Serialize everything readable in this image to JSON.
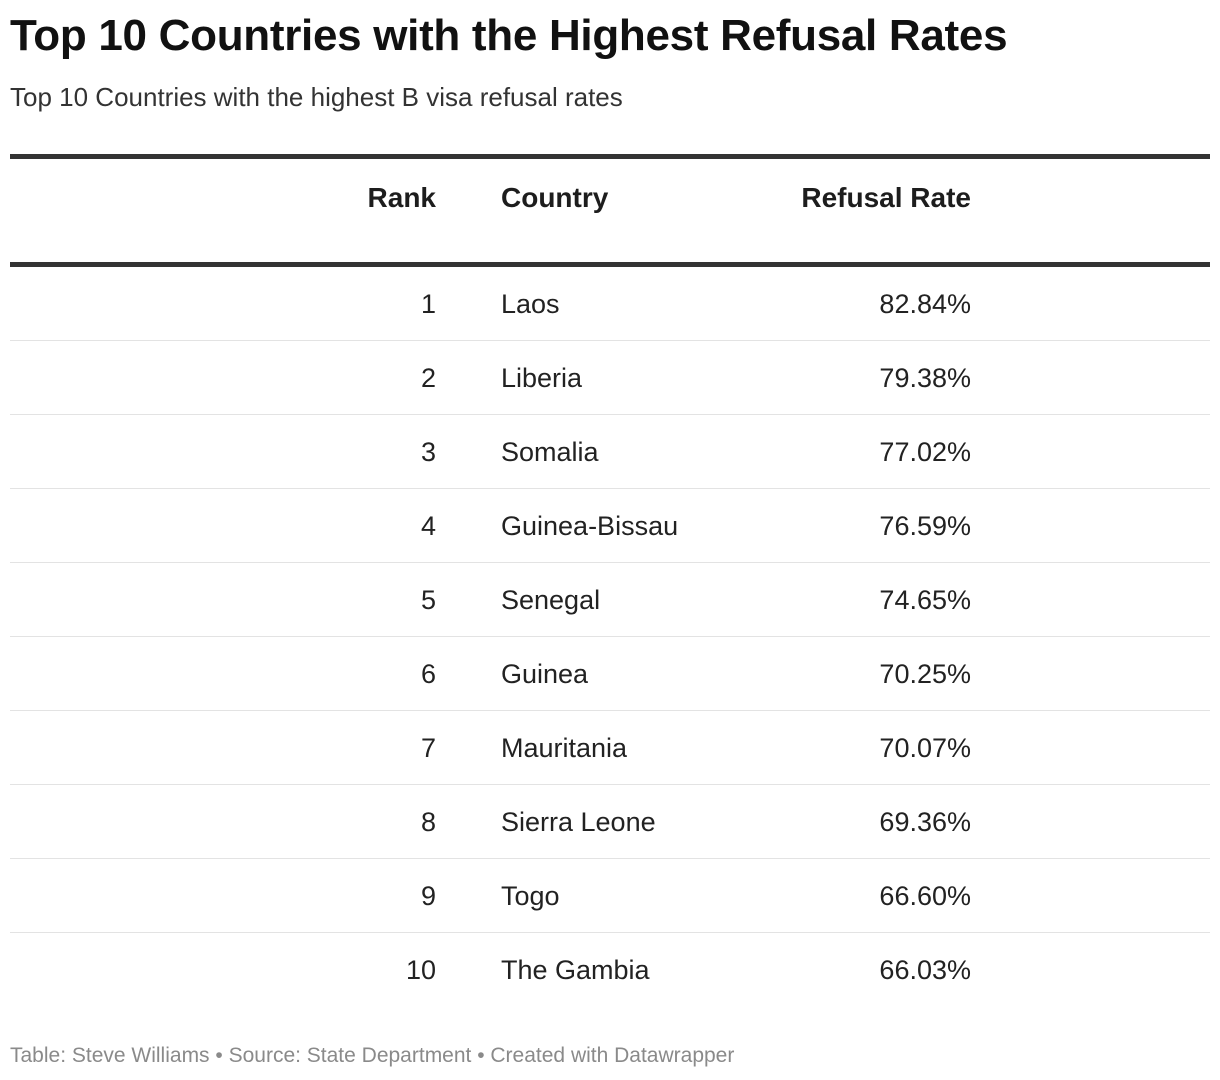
{
  "title": "Top 10 Countries with the Highest Refusal Rates",
  "subtitle": "Top 10 Countries with the highest B visa refusal rates",
  "footer": {
    "text": "Table: Steve Williams • Source: State Department • Created with Datawrapper"
  },
  "chart_data": {
    "type": "table",
    "title": "Top 10 Countries with the Highest Refusal Rates",
    "subtitle": "Top 10 Countries with the highest B visa refusal rates",
    "columns": [
      "Rank",
      "Country",
      "Refusal Rate"
    ],
    "rows": [
      {
        "rank": "1",
        "country": "Laos",
        "rate": "82.84%"
      },
      {
        "rank": "2",
        "country": "Liberia",
        "rate": "79.38%"
      },
      {
        "rank": "3",
        "country": "Somalia",
        "rate": "77.02%"
      },
      {
        "rank": "4",
        "country": "Guinea-Bissau",
        "rate": "76.59%"
      },
      {
        "rank": "5",
        "country": "Senegal",
        "rate": "74.65%"
      },
      {
        "rank": "6",
        "country": "Guinea",
        "rate": "70.25%"
      },
      {
        "rank": "7",
        "country": "Mauritania",
        "rate": "70.07%"
      },
      {
        "rank": "8",
        "country": "Sierra Leone",
        "rate": "69.36%"
      },
      {
        "rank": "9",
        "country": "Togo",
        "rate": "66.60%"
      },
      {
        "rank": "10",
        "country": "The Gambia",
        "rate": "66.03%"
      }
    ]
  }
}
